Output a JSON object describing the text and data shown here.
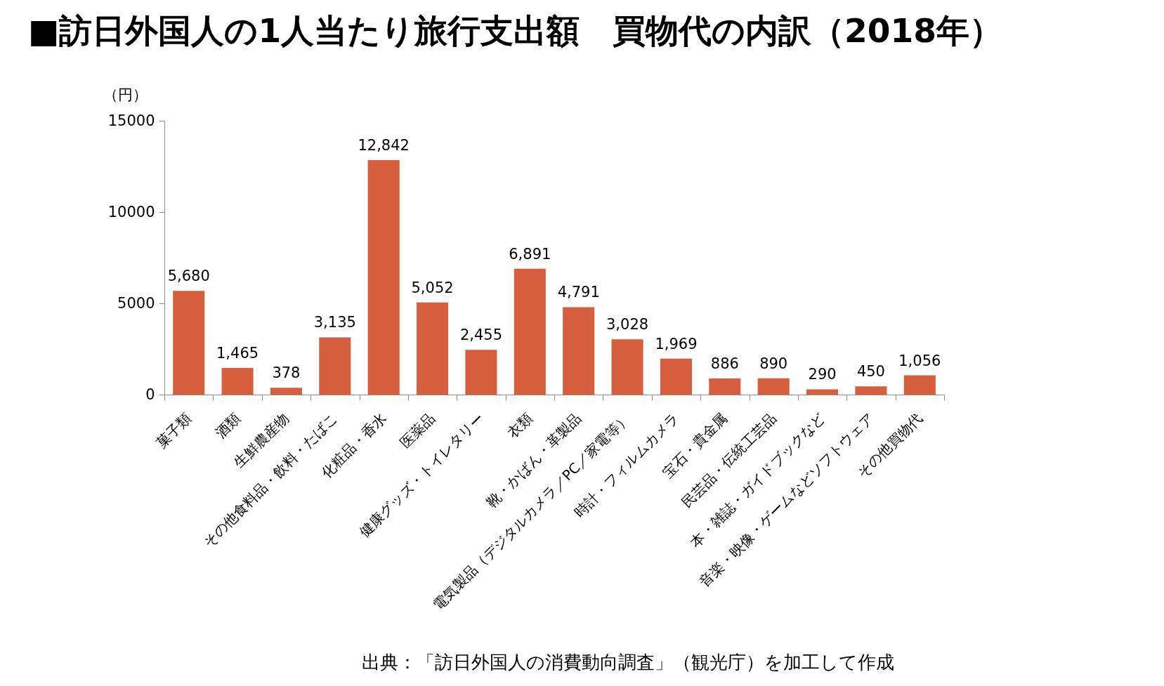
{
  "chart_data": {
    "type": "bar",
    "title": "■訪日外国人の1人当たり旅行支出額　買物代の内訳（2018年）",
    "ylabel": "（円）",
    "categories": [
      "菓子類",
      "酒類",
      "生鮮農産物",
      "その他食料品・飲料・たばこ",
      "化粧品・香水",
      "医薬品",
      "健康グッズ・トイレタリー",
      "衣類",
      "靴・かばん・革製品",
      "電気製品（デジタルカメラ／PC／家電等）",
      "時計・フィルムカメラ",
      "宝石・貴金属",
      "民芸品・伝統工芸品",
      "本・雑誌・ガイドブックなど",
      "音楽・映像・ゲームなどソフトウェア",
      "その他買物代"
    ],
    "values": [
      5680,
      1465,
      378,
      3135,
      12842,
      5052,
      2455,
      6891,
      4791,
      3028,
      1969,
      886,
      890,
      290,
      450,
      1056
    ],
    "value_labels": [
      "5,680",
      "1,465",
      "378",
      "3,135",
      "12,842",
      "5,052",
      "2,455",
      "6,891",
      "4,791",
      "3,028",
      "1,969",
      "886",
      "890",
      "290",
      "450",
      "1,056"
    ],
    "color": "#d65f40",
    "ylim": [
      0,
      15000
    ],
    "yticks": [
      0,
      5000,
      10000,
      15000
    ],
    "annotations": [
      "出典：「訪日外国人の消費動向調査」（観光庁）を加工して作成"
    ]
  }
}
